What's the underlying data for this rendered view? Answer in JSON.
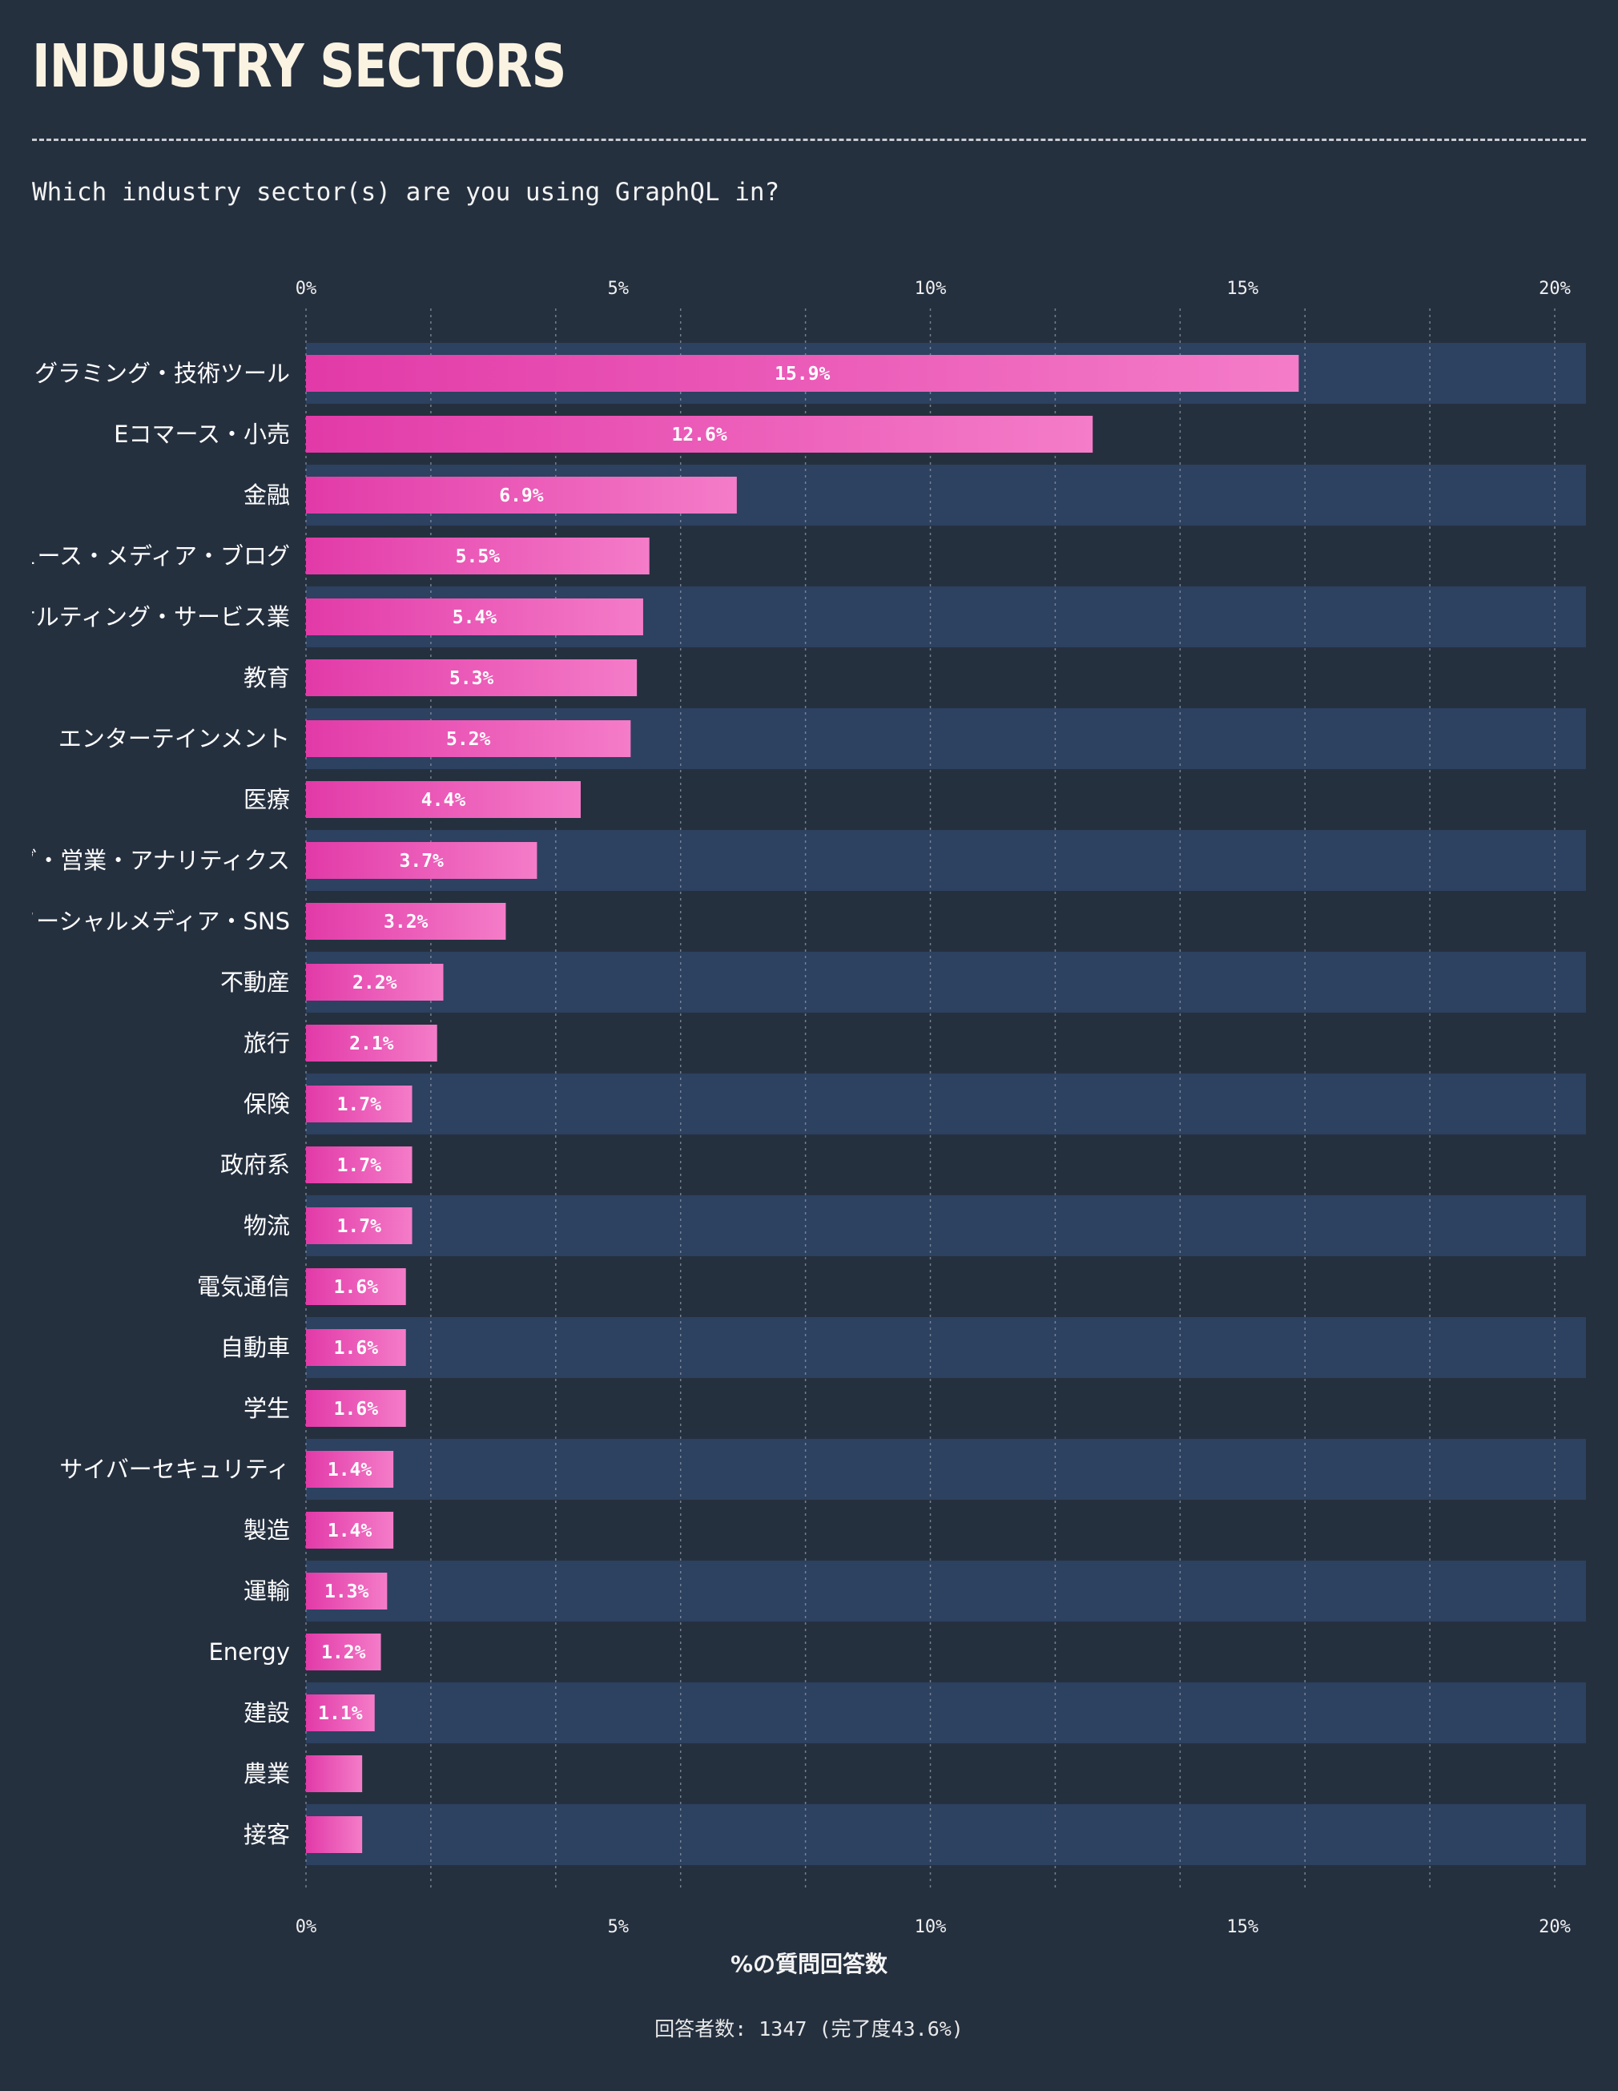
{
  "title": "INDUSTRY SECTORS",
  "question": "Which industry sector(s) are you using GraphQL in?",
  "footer": "回答者数: 1347 (完了度43.6%)",
  "colors": {
    "background": "#25303f",
    "band": "#2d4160",
    "bar_start": "#e23aa8",
    "bar_end": "#f47cc8"
  },
  "chart_data": {
    "type": "bar",
    "orientation": "horizontal",
    "xlabel": "%の質問回答数",
    "xlim": [
      0,
      20.5
    ],
    "xticks": [
      "0%",
      "5%",
      "10%",
      "15%",
      "20%"
    ],
    "grid": true,
    "categories": [
      "プログラミング・技術ツール",
      "Eコマース・小売",
      "金融",
      "ニュース・メディア・ブログ",
      "コンサルティング・サービス業",
      "教育",
      "エンターテインメント",
      "医療",
      "マーケティング・営業・アナリティクス",
      "ソーシャルメディア・SNS",
      "不動産",
      "旅行",
      "保険",
      "政府系",
      "物流",
      "電気通信",
      "自動車",
      "学生",
      "サイバーセキュリティ",
      "製造",
      "運輸",
      "Energy",
      "建設",
      "農業",
      "接客"
    ],
    "values": [
      15.9,
      12.6,
      6.9,
      5.5,
      5.4,
      5.3,
      5.2,
      4.4,
      3.7,
      3.2,
      2.2,
      2.1,
      1.7,
      1.7,
      1.7,
      1.6,
      1.6,
      1.6,
      1.4,
      1.4,
      1.3,
      1.2,
      1.1,
      0.9,
      0.9
    ],
    "value_labels": [
      "15.9%",
      "12.6%",
      "6.9%",
      "5.5%",
      "5.4%",
      "5.3%",
      "5.2%",
      "4.4%",
      "3.7%",
      "3.2%",
      "2.2%",
      "2.1%",
      "1.7%",
      "1.7%",
      "1.7%",
      "1.6%",
      "1.6%",
      "1.6%",
      "1.4%",
      "1.4%",
      "1.3%",
      "1.2%",
      "1.1%",
      "",
      ""
    ]
  }
}
